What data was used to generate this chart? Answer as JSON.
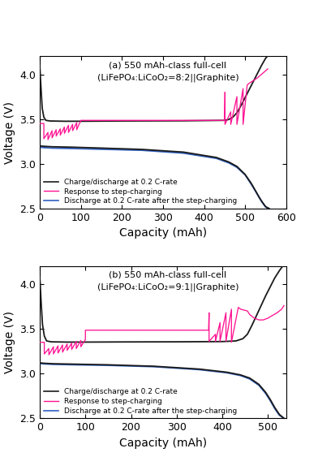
{
  "panel_a": {
    "title_line1": "(a) 550 mAh-class full-cell",
    "title_line2": "(LiFePO₄:LiCoO₂=8:2||Graphite)",
    "xlim": [
      0,
      600
    ],
    "ylim": [
      2.5,
      4.2
    ],
    "xticks": [
      0,
      100,
      200,
      300,
      400,
      500,
      600
    ],
    "yticks": [
      2.5,
      3.0,
      3.5,
      4.0
    ],
    "xlabel": "Capacity (mAh)",
    "ylabel": "Voltage (V)"
  },
  "panel_b": {
    "title_line1": "(b) 550 mAh-class full-cell",
    "title_line2": "(LiFePO₄:LiCoO₂=9:1||Graphite)",
    "xlim": [
      0,
      540
    ],
    "ylim": [
      2.5,
      4.2
    ],
    "xticks": [
      0,
      100,
      200,
      300,
      400,
      500
    ],
    "yticks": [
      2.5,
      3.0,
      3.5,
      4.0
    ],
    "xlabel": "Capacity (mAh)",
    "ylabel": "Voltage (V)"
  },
  "colors": {
    "black": "#1a1a1a",
    "magenta": "#FF1493",
    "blue": "#3060C0"
  },
  "legend_labels": [
    "Charge/discharge at 0.2 C-rate",
    "Response to step-charging",
    "Discharge at 0.2 C-rate after the step-charging"
  ],
  "figsize": [
    3.92,
    5.79
  ],
  "dpi": 100
}
